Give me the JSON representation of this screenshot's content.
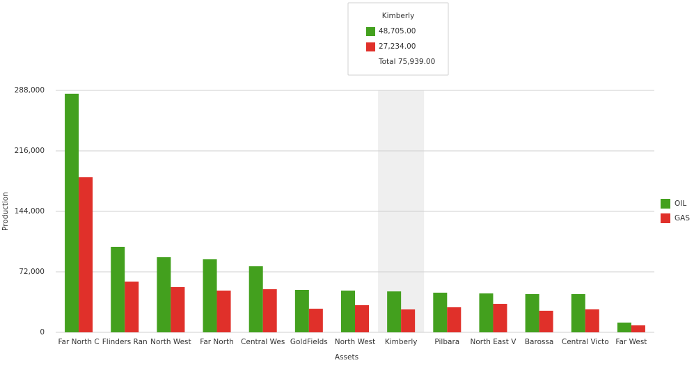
{
  "chart_data": {
    "type": "bar",
    "x_label": "Assets",
    "y_label": "Production",
    "categories": [
      "Far North C",
      "Flinders Ran",
      "North West",
      "Far North",
      "Central Wes",
      "GoldFields",
      "North West",
      "Kimberly",
      "Pilbara",
      "North East V",
      "Barossa",
      "Central Victo",
      "Far West"
    ],
    "series": [
      {
        "name": "OIL",
        "color": "#43a01e",
        "values": [
          284000,
          101800,
          89400,
          86900,
          78600,
          50500,
          49700,
          48705,
          47200,
          46300,
          45500,
          45500,
          11600
        ]
      },
      {
        "name": "GAS",
        "color": "#e0302a",
        "values": [
          184600,
          60400,
          53800,
          49700,
          51300,
          28100,
          32300,
          27234,
          29800,
          33900,
          25700,
          27300,
          8300
        ]
      }
    ],
    "ylim": [
      0,
      288000
    ],
    "yticks": [
      0,
      {
        "value": 72000,
        "label": "72,000"
      },
      {
        "value": 144000,
        "label": "144,000"
      },
      {
        "value": 216000,
        "label": "216,000"
      },
      {
        "value": 288000,
        "label": "288,000"
      }
    ],
    "grid": true,
    "legend": "right",
    "highlighted_category": "Kimberly",
    "tooltip": {
      "title": "Kimberly",
      "values": [
        "48,705.00",
        "27,234.00"
      ],
      "total": "Total 75,939.00"
    }
  }
}
